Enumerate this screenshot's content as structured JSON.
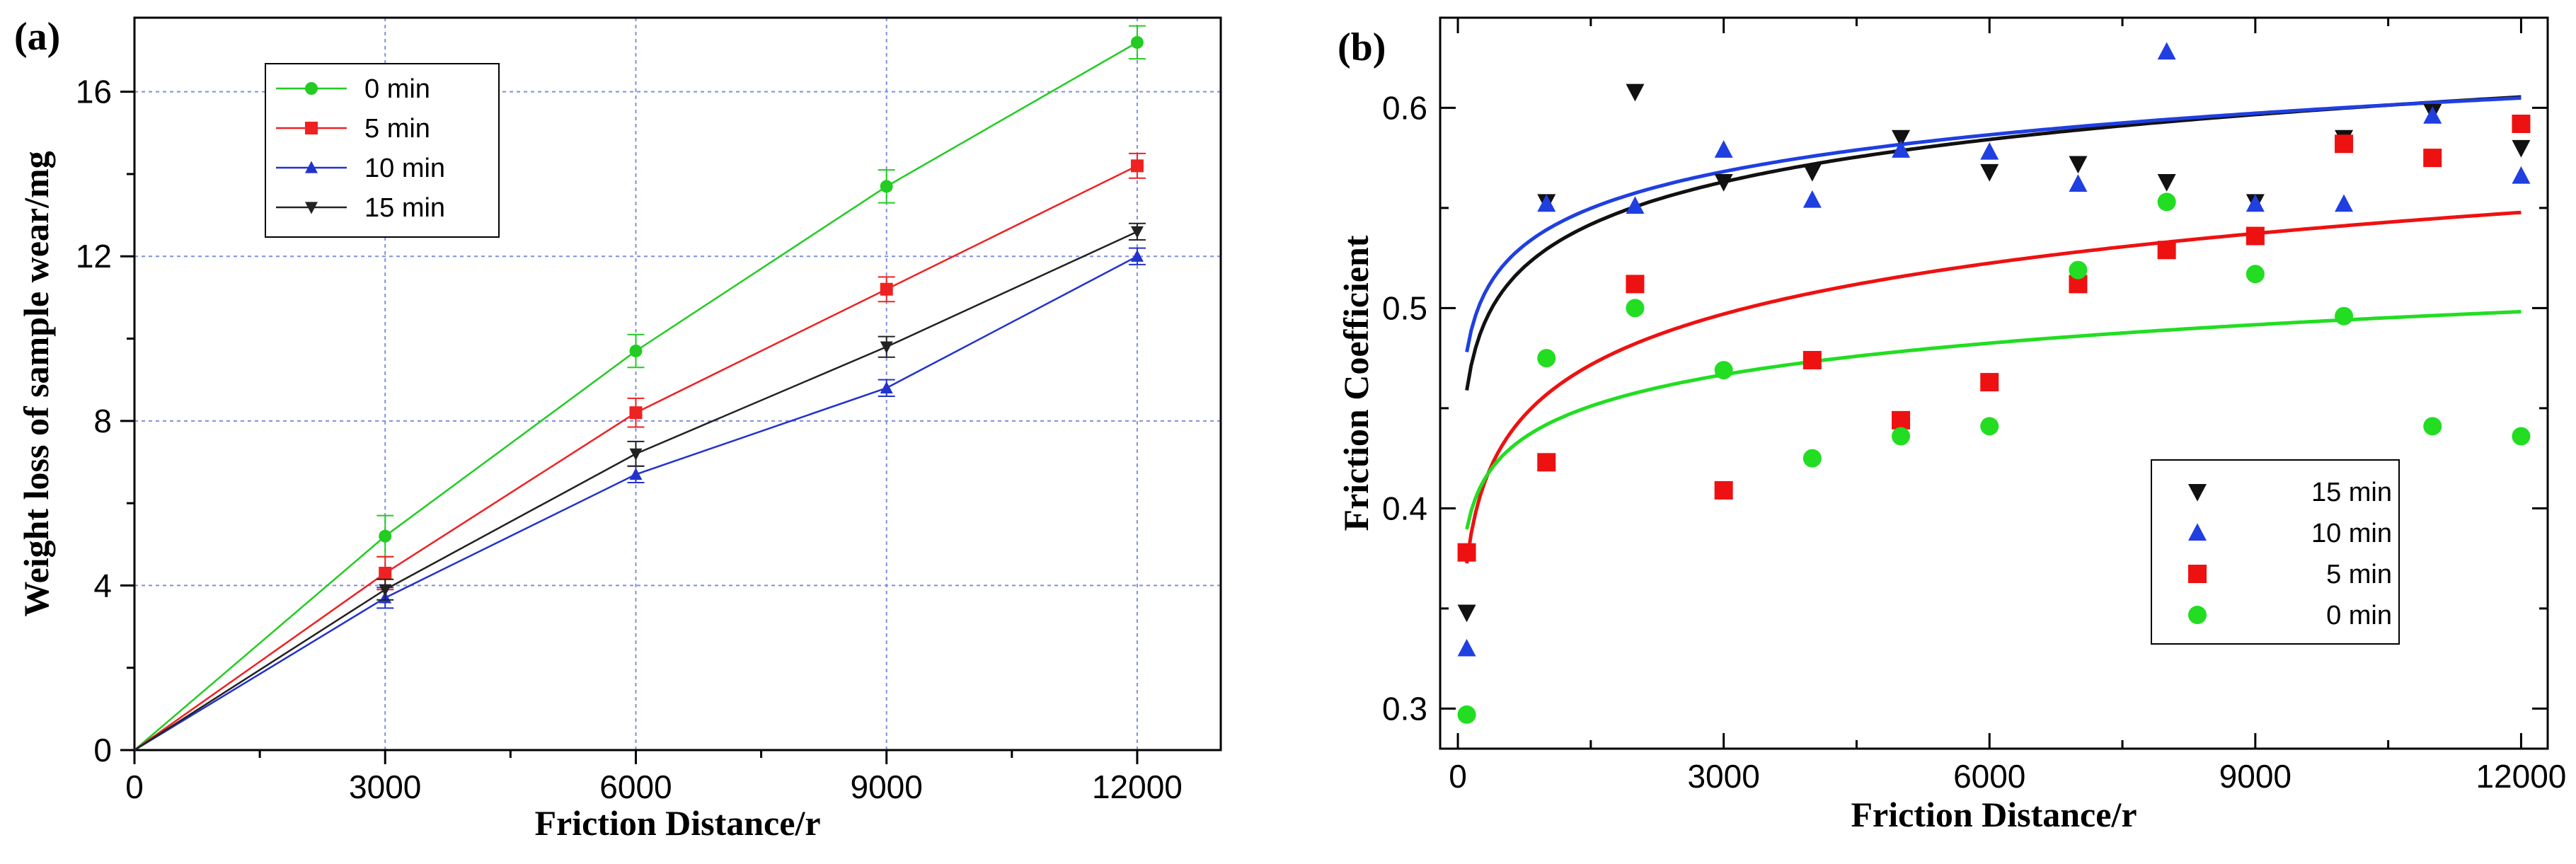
{
  "chart_data": [
    {
      "panel": "(a)",
      "type": "line",
      "xlabel": "Friction Distance/r",
      "ylabel": "Weight loss of sample wear/mg",
      "xlim": [
        0,
        13000
      ],
      "ylim": [
        0,
        17.8
      ],
      "xticks": [
        "0",
        "3000",
        "6000",
        "9000",
        "12000"
      ],
      "yticks": [
        "0",
        "4",
        "8",
        "12",
        "16"
      ],
      "grid": true,
      "legend_position": "top-left",
      "x": [
        0,
        3000,
        6000,
        9000,
        12000
      ],
      "series": [
        {
          "name": "0 min",
          "color": "#22cc22",
          "marker": "circle",
          "values": [
            0,
            5.2,
            9.7,
            13.7,
            17.2
          ],
          "errors": [
            0,
            0.5,
            0.4,
            0.4,
            0.4
          ]
        },
        {
          "name": "5 min",
          "color": "#ee2222",
          "marker": "square",
          "values": [
            0,
            4.3,
            8.2,
            11.2,
            14.2
          ],
          "errors": [
            0,
            0.4,
            0.35,
            0.3,
            0.3
          ]
        },
        {
          "name": "10 min",
          "color": "#2233cc",
          "marker": "triangle-up",
          "values": [
            0,
            3.7,
            6.7,
            8.8,
            12.0
          ],
          "errors": [
            0,
            0.25,
            0.2,
            0.2,
            0.2
          ]
        },
        {
          "name": "15 min",
          "color": "#222222",
          "marker": "triangle-down",
          "values": [
            0,
            3.9,
            7.2,
            9.8,
            12.6
          ],
          "errors": [
            0,
            0.25,
            0.3,
            0.25,
            0.2
          ]
        }
      ]
    },
    {
      "panel": "(b)",
      "type": "scatter",
      "xlabel": "Friction Distance/r",
      "ylabel": "Friction Coefficient",
      "xlim": [
        -200,
        12300
      ],
      "ylim": [
        0.28,
        0.645
      ],
      "xticks": [
        "0",
        "3000",
        "6000",
        "9000",
        "12000"
      ],
      "yticks": [
        "0.3",
        "0.4",
        "0.5",
        "0.6"
      ],
      "grid": false,
      "legend_position": "bottom-right",
      "x": [
        100,
        1000,
        2000,
        3000,
        4000,
        5000,
        6000,
        7000,
        8000,
        9000,
        10000,
        11000,
        12000
      ],
      "series": [
        {
          "name": "15 min",
          "color": "#111111",
          "marker": "triangle-down",
          "values": [
            0.348,
            0.553,
            0.608,
            0.563,
            0.568,
            0.585,
            0.568,
            0.572,
            0.563,
            0.553,
            0.585,
            0.598,
            0.58
          ],
          "fit": {
            "a": 0.318,
            "b": 0.0306
          }
        },
        {
          "name": "10 min",
          "color": "#1f3fe0",
          "marker": "triangle-up",
          "values": [
            0.33,
            0.552,
            0.551,
            0.579,
            0.554,
            0.579,
            0.578,
            0.562,
            0.628,
            0.552,
            0.552,
            0.596,
            0.566
          ],
          "fit": {
            "a": 0.356,
            "b": 0.0265
          }
        },
        {
          "name": "5 min",
          "color": "#ee1111",
          "marker": "square",
          "values": [
            0.378,
            0.423,
            0.512,
            0.409,
            0.474,
            0.444,
            0.463,
            0.512,
            0.529,
            0.536,
            0.582,
            0.575,
            0.592
          ],
          "fit": {
            "a": 0.204,
            "b": 0.0366
          }
        },
        {
          "name": "0 min",
          "color": "#22dd22",
          "marker": "circle",
          "values": [
            0.297,
            0.475,
            0.5,
            0.469,
            0.425,
            0.436,
            0.441,
            0.519,
            0.553,
            0.517,
            0.496,
            0.441,
            0.436
          ],
          "fit": {
            "a": 0.285,
            "b": 0.0227
          }
        }
      ]
    }
  ]
}
